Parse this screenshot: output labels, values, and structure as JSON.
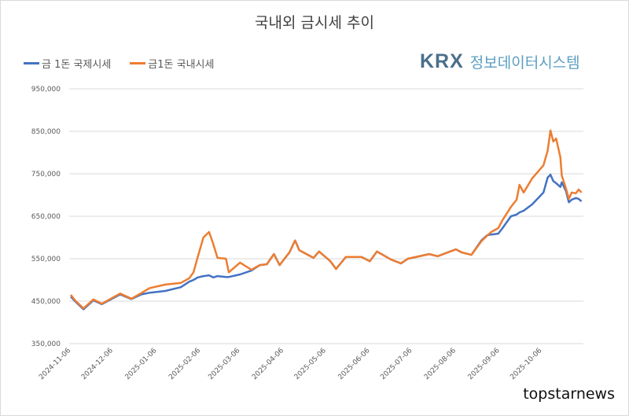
{
  "chart_data": {
    "type": "line",
    "title": "국내외 금시세 추이",
    "xlabel": "",
    "ylabel": "",
    "ylim": [
      350000,
      950000
    ],
    "yticks": [
      "950,000",
      "850,000",
      "750,000",
      "650,000",
      "550,000",
      "450,000",
      "350,000"
    ],
    "ytick_values": [
      950000,
      850000,
      750000,
      650000,
      550000,
      450000,
      350000
    ],
    "xticks": [
      "2024-11-06",
      "2024-12-06",
      "2025-01-06",
      "2025-02-06",
      "2025-03-06",
      "2025-04-06",
      "2025-05-06",
      "2025-06-06",
      "2025-07-06",
      "2025-08-06",
      "2025-09-06",
      "2025-10-06"
    ],
    "xlim": [
      "2024-11-06",
      "2025-11-06"
    ],
    "grid": true,
    "legend_position": "top-left",
    "x": [
      "2024-11-06",
      "2024-11-09",
      "2024-11-15",
      "2024-11-22",
      "2024-11-28",
      "2024-12-11",
      "2024-12-19",
      "2024-12-26",
      "2025-01-01",
      "2025-01-12",
      "2025-01-23",
      "2025-01-29",
      "2025-02-01",
      "2025-02-04",
      "2025-02-08",
      "2025-02-12",
      "2025-02-15",
      "2025-02-18",
      "2025-02-24",
      "2025-02-26",
      "2025-03-06",
      "2025-03-14",
      "2025-03-20",
      "2025-03-25",
      "2025-03-30",
      "2025-04-03",
      "2025-04-10",
      "2025-04-14",
      "2025-04-17",
      "2025-04-27",
      "2025-05-01",
      "2025-05-09",
      "2025-05-13",
      "2025-05-20",
      "2025-05-31",
      "2025-06-06",
      "2025-06-11",
      "2025-06-21",
      "2025-06-28",
      "2025-07-03",
      "2025-07-18",
      "2025-07-24",
      "2025-08-06",
      "2025-08-10",
      "2025-08-17",
      "2025-08-24",
      "2025-08-28",
      "2025-08-31",
      "2025-09-05",
      "2025-09-08",
      "2025-09-14",
      "2025-09-18",
      "2025-09-20",
      "2025-09-23",
      "2025-09-29",
      "2025-10-07",
      "2025-10-10",
      "2025-10-12",
      "2025-10-14",
      "2025-10-16",
      "2025-10-19",
      "2025-10-20",
      "2025-10-23",
      "2025-10-25",
      "2025-10-27",
      "2025-10-30",
      "2025-11-01",
      "2025-11-03"
    ],
    "series": [
      {
        "name": "금 1돈 국제시세",
        "color": "#4472c4",
        "values": [
          461000,
          450000,
          431000,
          452000,
          443000,
          466000,
          455000,
          466000,
          470000,
          474000,
          483000,
          496000,
          500000,
          506000,
          509000,
          511000,
          506000,
          509000,
          507000,
          507000,
          513000,
          522000,
          535000,
          537000,
          561000,
          535000,
          565000,
          593000,
          570000,
          552000,
          567000,
          544000,
          526000,
          554000,
          554000,
          544000,
          567000,
          548000,
          539000,
          550000,
          561000,
          556000,
          572000,
          565000,
          559000,
          593000,
          605000,
          607000,
          609000,
          622000,
          650000,
          654000,
          659000,
          663000,
          678000,
          706000,
          741000,
          748000,
          733000,
          728000,
          719000,
          730000,
          709000,
          683000,
          689000,
          693000,
          691000,
          685000
        ]
      },
      {
        "name": "금1돈 국내시세",
        "color": "#ed7d31",
        "values": [
          465000,
          452000,
          433000,
          454000,
          444000,
          468000,
          456000,
          469000,
          481000,
          489000,
          493000,
          504000,
          518000,
          554000,
          600000,
          613000,
          585000,
          552000,
          550000,
          518000,
          541000,
          524000,
          535000,
          537000,
          561000,
          535000,
          565000,
          593000,
          570000,
          552000,
          567000,
          544000,
          526000,
          554000,
          554000,
          544000,
          567000,
          548000,
          539000,
          550000,
          561000,
          556000,
          572000,
          565000,
          559000,
          591000,
          604000,
          613000,
          622000,
          641000,
          672000,
          689000,
          724000,
          706000,
          739000,
          770000,
          804000,
          852000,
          826000,
          833000,
          789000,
          746000,
          715000,
          691000,
          706000,
          704000,
          713000,
          706000
        ]
      }
    ]
  },
  "logo": {
    "brand": "KRX",
    "text": "정보데이터시스템"
  },
  "watermark": "topstarnews"
}
